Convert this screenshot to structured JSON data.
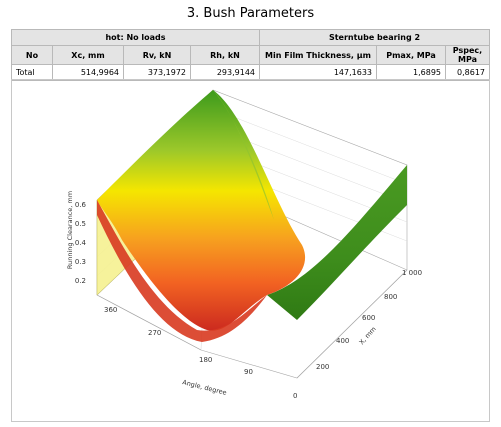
{
  "page": {
    "title": "3. Bush Parameters"
  },
  "table": {
    "group_headers": [
      "hot: No loads",
      "Sterntube bearing 2"
    ],
    "columns": [
      "No",
      "Xc, mm",
      "Rv, kN",
      "Rh, kN",
      "Min Film Thickness, µm",
      "Pmax, MPa",
      "Pspec, MPa"
    ],
    "rows": [
      [
        "Total",
        "514,9964",
        "373,1972",
        "293,9144",
        "147,1633",
        "1,6895",
        "0,8617"
      ]
    ]
  },
  "chart_data": {
    "type": "surface",
    "title": "",
    "zlabel": "Running Clearance, mm",
    "xlabel": "X, mm",
    "anglelabel": "Angle, degree",
    "z_ticks": [
      "0.6",
      "0.5",
      "0.4",
      "0.3",
      "0.2"
    ],
    "x_ticks": [
      "0",
      "200",
      "400",
      "600",
      "800",
      "1 000"
    ],
    "angle_ticks": [
      "360",
      "270",
      "180",
      "90"
    ],
    "x_range": [
      0,
      1000
    ],
    "angle_range": [
      0,
      360
    ],
    "z_range": [
      0.1,
      0.6
    ],
    "surface_samples": {
      "x_mm": [
        0,
        1000
      ],
      "angle_deg": [
        0,
        90,
        180,
        270,
        360
      ],
      "clearance_mm_at_x0": [
        0.6,
        0.35,
        0.1,
        0.35,
        0.6
      ],
      "clearance_mm_at_x1000": [
        0.35,
        0.2,
        0.15,
        0.3,
        0.45
      ]
    },
    "colormap": [
      "#cc2a1f",
      "#f26322",
      "#f7a01f",
      "#f5e600",
      "#9cc82a",
      "#3c9a1c"
    ],
    "grid": true,
    "legend": "none"
  }
}
